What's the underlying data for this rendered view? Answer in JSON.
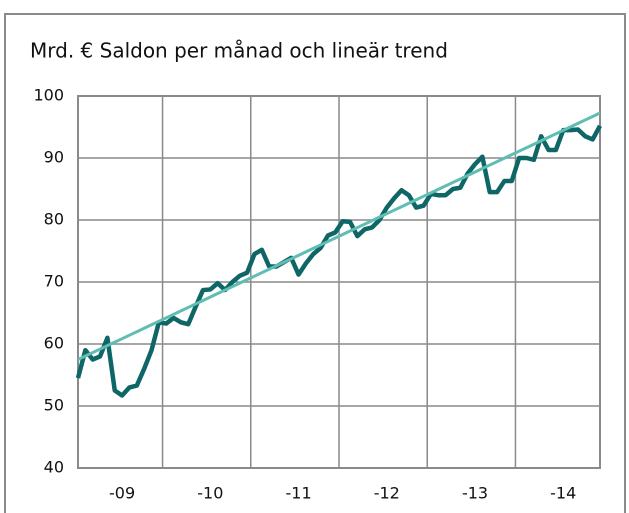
{
  "chart_data": {
    "type": "line",
    "title": "Mrd. €   Saldon per månad och lineär trend",
    "categories": [
      null,
      null,
      null,
      null,
      null,
      null,
      "-09",
      null,
      null,
      null,
      null,
      null,
      null,
      null,
      null,
      null,
      null,
      null,
      "-10",
      null,
      null,
      null,
      null,
      null,
      null,
      null,
      null,
      null,
      null,
      null,
      "-11",
      null,
      null,
      null,
      null,
      null,
      null,
      null,
      null,
      null,
      null,
      null,
      "-12",
      null,
      null,
      null,
      null,
      null,
      null,
      null,
      null,
      null,
      null,
      null,
      "-13",
      null,
      null,
      null,
      null,
      null,
      null,
      null,
      null,
      null,
      null,
      null,
      "-14",
      null,
      null,
      null,
      null,
      null
    ],
    "series": [
      {
        "color": "#0f6666",
        "values": [
          54.5,
          59,
          57.5,
          58,
          61,
          52.5,
          51.7,
          53,
          53.3,
          56,
          59,
          63.5,
          63.3,
          64.2,
          63.5,
          63.2,
          66,
          68.7,
          68.8,
          69.8,
          68.7,
          70,
          71,
          71.5,
          74.5,
          75.2,
          72.5,
          72.5,
          73.2,
          73.9,
          71.2,
          73,
          74.5,
          75.5,
          77.5,
          78,
          79.8,
          79.7,
          77.4,
          78.5,
          78.8,
          80,
          82,
          83.5,
          84.8,
          84,
          82,
          82.3,
          84.2,
          84,
          84,
          85,
          85.2,
          87.5,
          89,
          90.2,
          84.5,
          84.5,
          86.3,
          86.3,
          90,
          90,
          89.7,
          93.5,
          91.3,
          91.3,
          94.5,
          94.5,
          94.6,
          93.5,
          93,
          95.2
        ]
      },
      {
        "color": "#5fbdb3",
        "values": [
          57.5,
          58.06,
          58.62,
          59.18,
          59.74,
          60.3,
          60.86,
          61.42,
          61.98,
          62.54,
          63.1,
          63.66,
          64.22,
          64.78,
          65.34,
          65.9,
          66.46,
          67.02,
          67.58,
          68.14,
          68.7,
          69.26,
          69.82,
          70.38,
          70.94,
          71.5,
          72.06,
          72.62,
          73.18,
          73.74,
          74.3,
          74.86,
          75.42,
          75.98,
          76.54,
          77.1,
          77.66,
          78.22,
          78.78,
          79.34,
          79.9,
          80.46,
          81.02,
          81.58,
          82.14,
          82.7,
          83.26,
          83.82,
          84.38,
          84.94,
          85.5,
          86.06,
          86.62,
          87.18,
          87.74,
          88.3,
          88.86,
          89.42,
          89.98,
          90.54,
          91.1,
          91.66,
          92.22,
          92.78,
          93.34,
          93.9,
          94.46,
          95.02,
          95.58,
          96.14,
          96.7,
          97.26
        ]
      }
    ],
    "ylim": [
      40,
      100
    ],
    "yticks": [
      40,
      50,
      60,
      70,
      80,
      90,
      100
    ],
    "grid": true
  }
}
